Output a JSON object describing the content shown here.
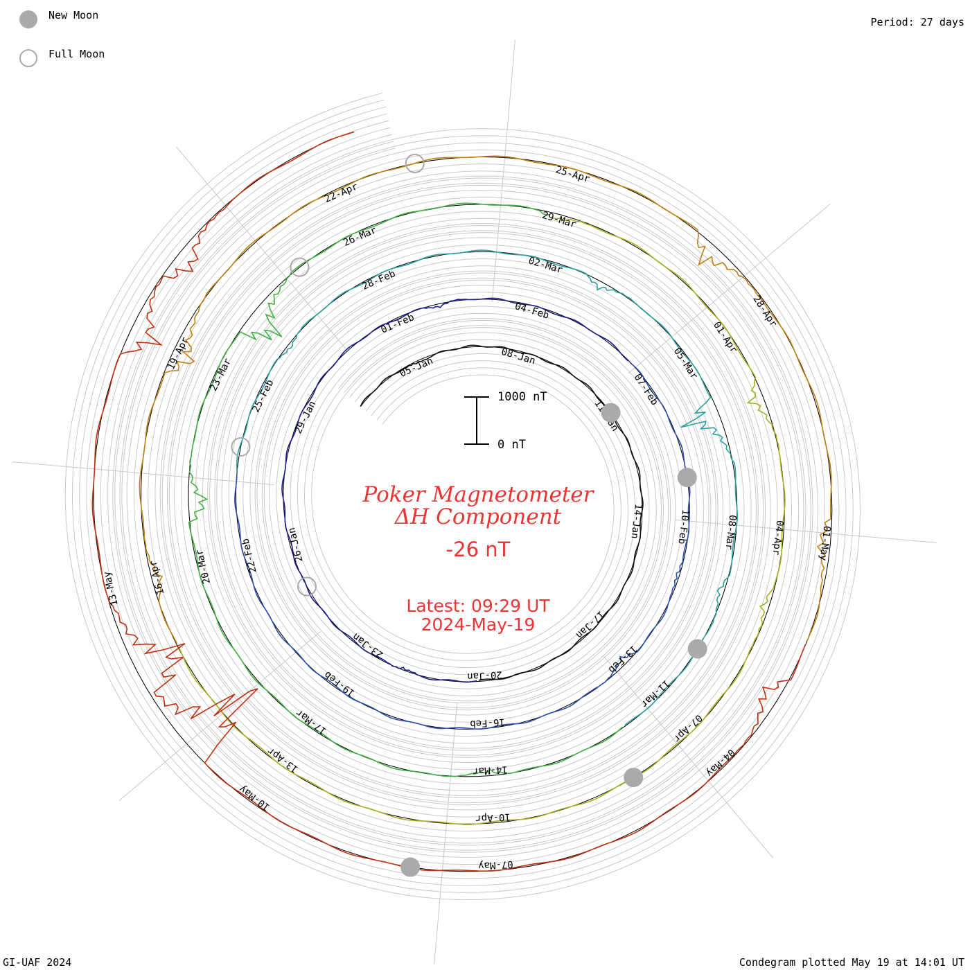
{
  "legend": {
    "new_moon": "New Moon",
    "full_moon": "Full Moon",
    "new_moon_color": "#aaaaaa",
    "full_moon_color": "#aaaaaa"
  },
  "period_label": "Period: 27 days",
  "footer_left": "GI-UAF 2024",
  "footer_right": "Condegram plotted May 19 at 14:01 UT",
  "center": {
    "title_line1": "Poker Magnetometer",
    "title_line2": "ΔH Component",
    "current_value": "-26 nT",
    "latest": "Latest: 09:29 UT",
    "date": "2024-May-19",
    "text_color": "#ee3333"
  },
  "scale_bar": {
    "top_label": "1000 nT",
    "bottom_label": "0 nT"
  },
  "chart_data": {
    "type": "line",
    "title": "Poker Magnetometer ΔH Component",
    "period_days": 27,
    "units": "nT",
    "start_date": "2024-01-03",
    "end_date": "2024-05-19",
    "tick_labels": [
      "05-Jan",
      "08-Jan",
      "11-Jan",
      "14-Jan",
      "17-Jan",
      "20-Jan",
      "23-Jan",
      "26-Jan",
      "29-Jan",
      "01-Feb",
      "04-Feb",
      "07-Feb",
      "10-Feb",
      "13-Feb",
      "16-Feb",
      "19-Feb",
      "22-Feb",
      "25-Feb",
      "28-Feb",
      "02-Mar",
      "05-Mar",
      "08-Mar",
      "11-Mar",
      "14-Mar",
      "17-Mar",
      "20-Mar",
      "23-Mar",
      "26-Mar",
      "29-Mar",
      "01-Apr",
      "04-Apr",
      "07-Apr",
      "10-Apr",
      "13-Apr",
      "16-Apr",
      "19-Apr",
      "22-Apr",
      "25-Apr",
      "28-Apr",
      "01-May",
      "04-May",
      "07-May",
      "10-May",
      "13-May"
    ],
    "new_moons": [
      "2024-01-11",
      "2024-02-09",
      "2024-03-10",
      "2024-04-08",
      "2024-05-08"
    ],
    "full_moons": [
      "2024-01-25",
      "2024-02-24",
      "2024-03-25",
      "2024-04-23"
    ],
    "events": [
      {
        "date": "2024-01-05",
        "value": -60
      },
      {
        "date": "2024-01-22",
        "value": -80
      },
      {
        "date": "2024-02-02",
        "value": -70
      },
      {
        "date": "2024-02-11",
        "value": -120
      },
      {
        "date": "2024-02-13",
        "value": -160
      },
      {
        "date": "2024-02-26",
        "value": -90
      },
      {
        "date": "2024-03-03",
        "value": -180
      },
      {
        "date": "2024-03-06",
        "value": -900
      },
      {
        "date": "2024-03-09",
        "value": -150
      },
      {
        "date": "2024-03-14",
        "value": -120
      },
      {
        "date": "2024-03-21",
        "value": -500
      },
      {
        "date": "2024-03-24",
        "value": -1000
      },
      {
        "date": "2024-03-29",
        "value": -120
      },
      {
        "date": "2024-04-02",
        "value": -350
      },
      {
        "date": "2024-04-05",
        "value": -200
      },
      {
        "date": "2024-04-16",
        "value": -200
      },
      {
        "date": "2024-04-19",
        "value": -600
      },
      {
        "date": "2024-04-27",
        "value": -550
      },
      {
        "date": "2024-05-01",
        "value": -350
      },
      {
        "date": "2024-05-03",
        "value": -500
      },
      {
        "date": "2024-05-11",
        "value": -2400
      },
      {
        "date": "2024-05-12",
        "value": -1500
      },
      {
        "date": "2024-05-16",
        "value": -700
      },
      {
        "date": "2024-05-17",
        "value": -600
      }
    ]
  }
}
